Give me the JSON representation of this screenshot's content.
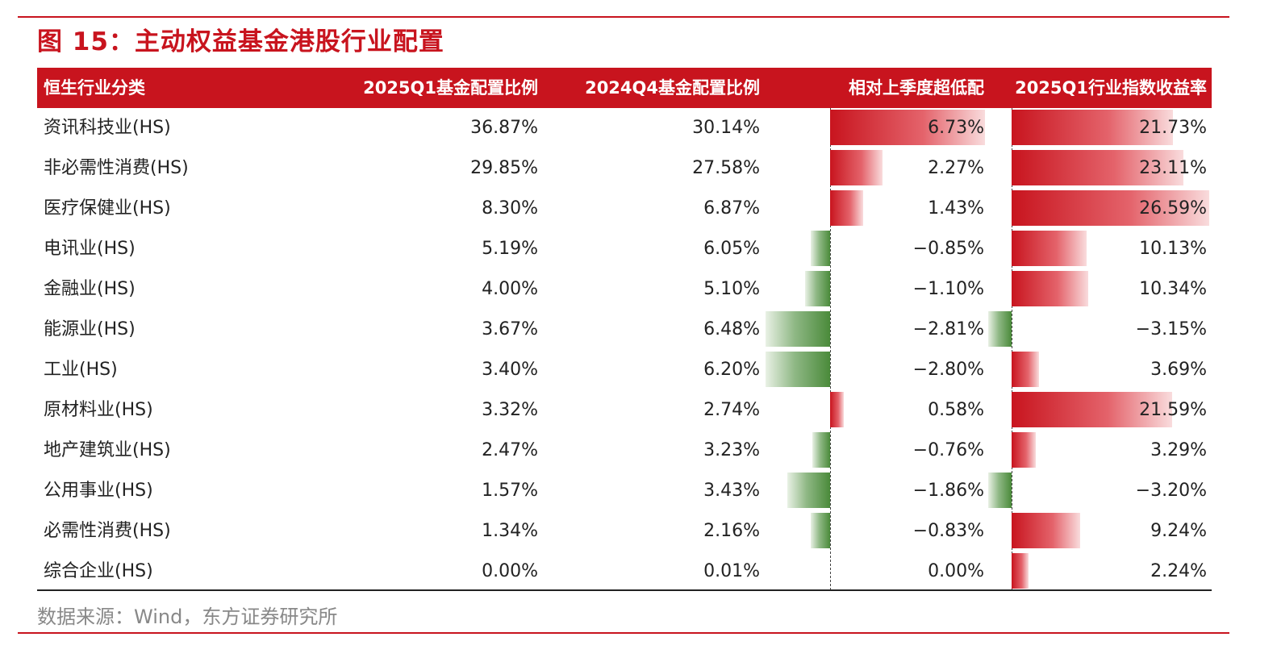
{
  "title": "图 15：主动权益基金港股行业配置",
  "source": "数据来源：Wind，东方证券研究所",
  "colors": {
    "accent": "#c8141e",
    "positive": "#c8141e",
    "negative": "#4a8a3a"
  },
  "chart_data": {
    "type": "table",
    "columns": [
      "恒生行业分类",
      "2025Q1基金配置比例",
      "2024Q4基金配置比例",
      "相对上季度超低配",
      "2025Q1行业指数收益率"
    ],
    "rows": [
      {
        "industry": "资讯科技业(HS)",
        "q1": "36.87%",
        "q4": "30.14%",
        "diff": "6.73%",
        "diff_value": 6.73,
        "ret": "21.73%",
        "ret_value": 21.73
      },
      {
        "industry": "非必需性消费(HS)",
        "q1": "29.85%",
        "q4": "27.58%",
        "diff": "2.27%",
        "diff_value": 2.27,
        "ret": "23.11%",
        "ret_value": 23.11
      },
      {
        "industry": "医疗保健业(HS)",
        "q1": "8.30%",
        "q4": "6.87%",
        "diff": "1.43%",
        "diff_value": 1.43,
        "ret": "26.59%",
        "ret_value": 26.59
      },
      {
        "industry": "电讯业(HS)",
        "q1": "5.19%",
        "q4": "6.05%",
        "diff": "−0.85%",
        "diff_value": -0.85,
        "ret": "10.13%",
        "ret_value": 10.13
      },
      {
        "industry": "金融业(HS)",
        "q1": "4.00%",
        "q4": "5.10%",
        "diff": "−1.10%",
        "diff_value": -1.1,
        "ret": "10.34%",
        "ret_value": 10.34
      },
      {
        "industry": "能源业(HS)",
        "q1": "3.67%",
        "q4": "6.48%",
        "diff": "−2.81%",
        "diff_value": -2.81,
        "ret": "−3.15%",
        "ret_value": -3.15
      },
      {
        "industry": "工业(HS)",
        "q1": "3.40%",
        "q4": "6.20%",
        "diff": "−2.80%",
        "diff_value": -2.8,
        "ret": "3.69%",
        "ret_value": 3.69
      },
      {
        "industry": "原材料业(HS)",
        "q1": "3.32%",
        "q4": "2.74%",
        "diff": "0.58%",
        "diff_value": 0.58,
        "ret": "21.59%",
        "ret_value": 21.59
      },
      {
        "industry": "地产建筑业(HS)",
        "q1": "2.47%",
        "q4": "3.23%",
        "diff": "−0.76%",
        "diff_value": -0.76,
        "ret": "3.29%",
        "ret_value": 3.29
      },
      {
        "industry": "公用事业(HS)",
        "q1": "1.57%",
        "q4": "3.43%",
        "diff": "−1.86%",
        "diff_value": -1.86,
        "ret": "−3.20%",
        "ret_value": -3.2
      },
      {
        "industry": "必需性消费(HS)",
        "q1": "1.34%",
        "q4": "2.16%",
        "diff": "−0.83%",
        "diff_value": -0.83,
        "ret": "9.24%",
        "ret_value": 9.24
      },
      {
        "industry": "综合企业(HS)",
        "q1": "0.00%",
        "q4": "0.01%",
        "diff": "0.00%",
        "diff_value": 0.0,
        "ret": "2.24%",
        "ret_value": 2.24
      }
    ]
  }
}
